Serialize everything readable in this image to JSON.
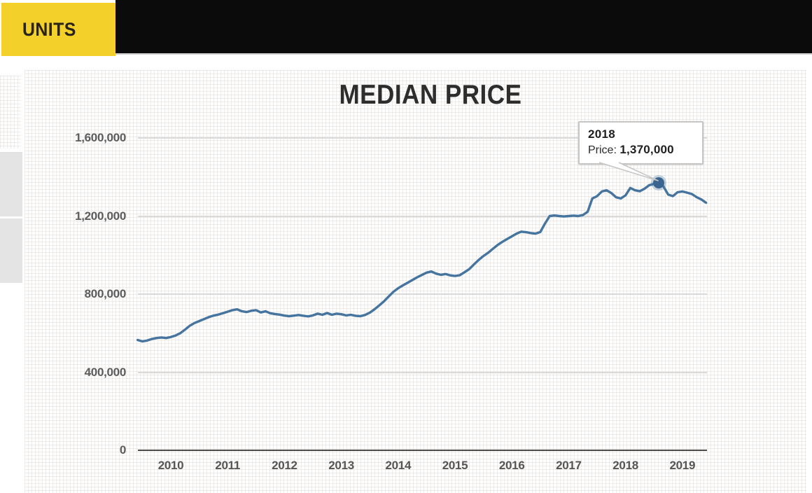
{
  "header": {
    "tab_label": "UNITS"
  },
  "chart": {
    "title": "MEDIAN PRICE",
    "tooltip": {
      "year": "2018",
      "price_label": "Price:",
      "price_value": "1,370,000"
    }
  },
  "colors": {
    "accent_yellow": "#f4d02a",
    "header_black": "#0b0b0b",
    "line": "#45749f",
    "dot": "#38648e",
    "grid_line": "#dadada",
    "axis_line": "#4a4a4a",
    "side_block_gray": "#e4e4e4"
  },
  "chart_data": {
    "type": "line",
    "title": "MEDIAN PRICE",
    "grid": "horizontal",
    "legend": "none",
    "x_axis": {
      "tick_labels": [
        "2010",
        "2011",
        "2012",
        "2013",
        "2014",
        "2015",
        "2016",
        "2017",
        "2018",
        "2019"
      ],
      "first_tick_year": 2010
    },
    "y_axis": {
      "max": 1600000,
      "ticks": [
        {
          "value": 0,
          "label": "0"
        },
        {
          "value": 400000,
          "label": "400,000"
        },
        {
          "value": 800000,
          "label": "800,000"
        },
        {
          "value": 1200000,
          "label": "1,200,000"
        },
        {
          "value": 1600000,
          "label": "1,600,000"
        }
      ]
    },
    "series": [
      {
        "name": "Median price",
        "x_start_year": 2009.4167,
        "x_step_years": 0.083333,
        "values": [
          565000,
          558000,
          562000,
          570000,
          575000,
          578000,
          575000,
          580000,
          588000,
          600000,
          618000,
          638000,
          652000,
          662000,
          672000,
          682000,
          690000,
          695000,
          702000,
          710000,
          718000,
          722000,
          712000,
          708000,
          715000,
          718000,
          706000,
          712000,
          702000,
          698000,
          695000,
          690000,
          687000,
          690000,
          693000,
          689000,
          686000,
          691000,
          700000,
          694000,
          703000,
          694000,
          700000,
          697000,
          691000,
          694000,
          689000,
          687000,
          693000,
          705000,
          722000,
          742000,
          763000,
          788000,
          812000,
          830000,
          845000,
          858000,
          872000,
          886000,
          898000,
          910000,
          916000,
          905000,
          899000,
          903000,
          896000,
          893000,
          897000,
          912000,
          928000,
          952000,
          975000,
          995000,
          1012000,
          1032000,
          1052000,
          1068000,
          1082000,
          1096000,
          1110000,
          1120000,
          1117000,
          1113000,
          1110000,
          1118000,
          1162000,
          1200000,
          1203000,
          1200000,
          1198000,
          1200000,
          1202000,
          1200000,
          1205000,
          1222000,
          1290000,
          1302000,
          1326000,
          1332000,
          1318000,
          1296000,
          1290000,
          1306000,
          1344000,
          1332000,
          1327000,
          1340000,
          1358000,
          1365000,
          1370000,
          1352000,
          1310000,
          1302000,
          1322000,
          1326000,
          1320000,
          1313000,
          1297000,
          1285000,
          1268000
        ]
      }
    ],
    "highlight": {
      "index": 110,
      "year_label": "2018",
      "value": 1370000
    }
  }
}
